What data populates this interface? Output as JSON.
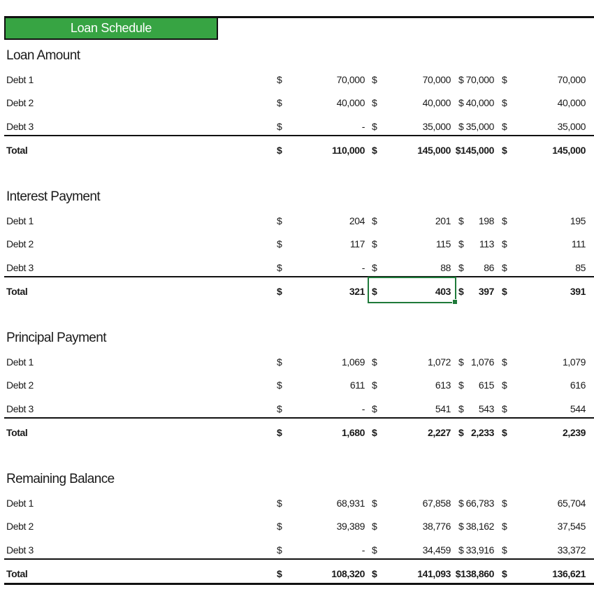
{
  "title": "Loan Schedule",
  "sections": [
    {
      "heading": "Loan Amount",
      "rows": [
        {
          "label": "Debt 1",
          "values": [
            "70,000",
            "70,000",
            "70,000",
            "70,000"
          ]
        },
        {
          "label": "Debt 2",
          "values": [
            "40,000",
            "40,000",
            "40,000",
            "40,000"
          ]
        },
        {
          "label": "Debt 3",
          "values": [
            "-",
            "35,000",
            "35,000",
            "35,000"
          ]
        }
      ],
      "total": {
        "label": "Total",
        "values": [
          "110,000",
          "145,000",
          "$145,000",
          "145,000"
        ]
      }
    },
    {
      "heading": "Interest Payment",
      "rows": [
        {
          "label": "Debt 1",
          "values": [
            "204",
            "201",
            "198",
            "195"
          ]
        },
        {
          "label": "Debt 2",
          "values": [
            "117",
            "115",
            "113",
            "111"
          ]
        },
        {
          "label": "Debt 3",
          "values": [
            "-",
            "88",
            "86",
            "85"
          ]
        }
      ],
      "total": {
        "label": "Total",
        "values": [
          "321",
          "403",
          "397",
          "391"
        ]
      }
    },
    {
      "heading": "Principal Payment",
      "rows": [
        {
          "label": "Debt 1",
          "values": [
            "1,069",
            "1,072",
            "1,076",
            "1,079"
          ]
        },
        {
          "label": "Debt 2",
          "values": [
            "611",
            "613",
            "615",
            "616"
          ]
        },
        {
          "label": "Debt 3",
          "values": [
            "-",
            "541",
            "543",
            "544"
          ]
        }
      ],
      "total": {
        "label": "Total",
        "values": [
          "1,680",
          "2,227",
          "2,233",
          "2,239"
        ]
      }
    },
    {
      "heading": "Remaining Balance",
      "rows": [
        {
          "label": "Debt 1",
          "values": [
            "68,931",
            "67,858",
            "66,783",
            "65,704"
          ]
        },
        {
          "label": "Debt 2",
          "values": [
            "39,389",
            "38,776",
            "38,162",
            "37,545"
          ]
        },
        {
          "label": "Debt 3",
          "values": [
            "-",
            "34,459",
            "33,916",
            "33,372"
          ]
        }
      ],
      "total": {
        "label": "Total",
        "values": [
          "108,320",
          "141,093",
          "$138,860",
          "136,621"
        ]
      }
    }
  ],
  "currency_symbol": "$",
  "colors": {
    "title_fill": "#37a443",
    "title_text": "#ffffff",
    "selection": "#1f7a3a"
  }
}
